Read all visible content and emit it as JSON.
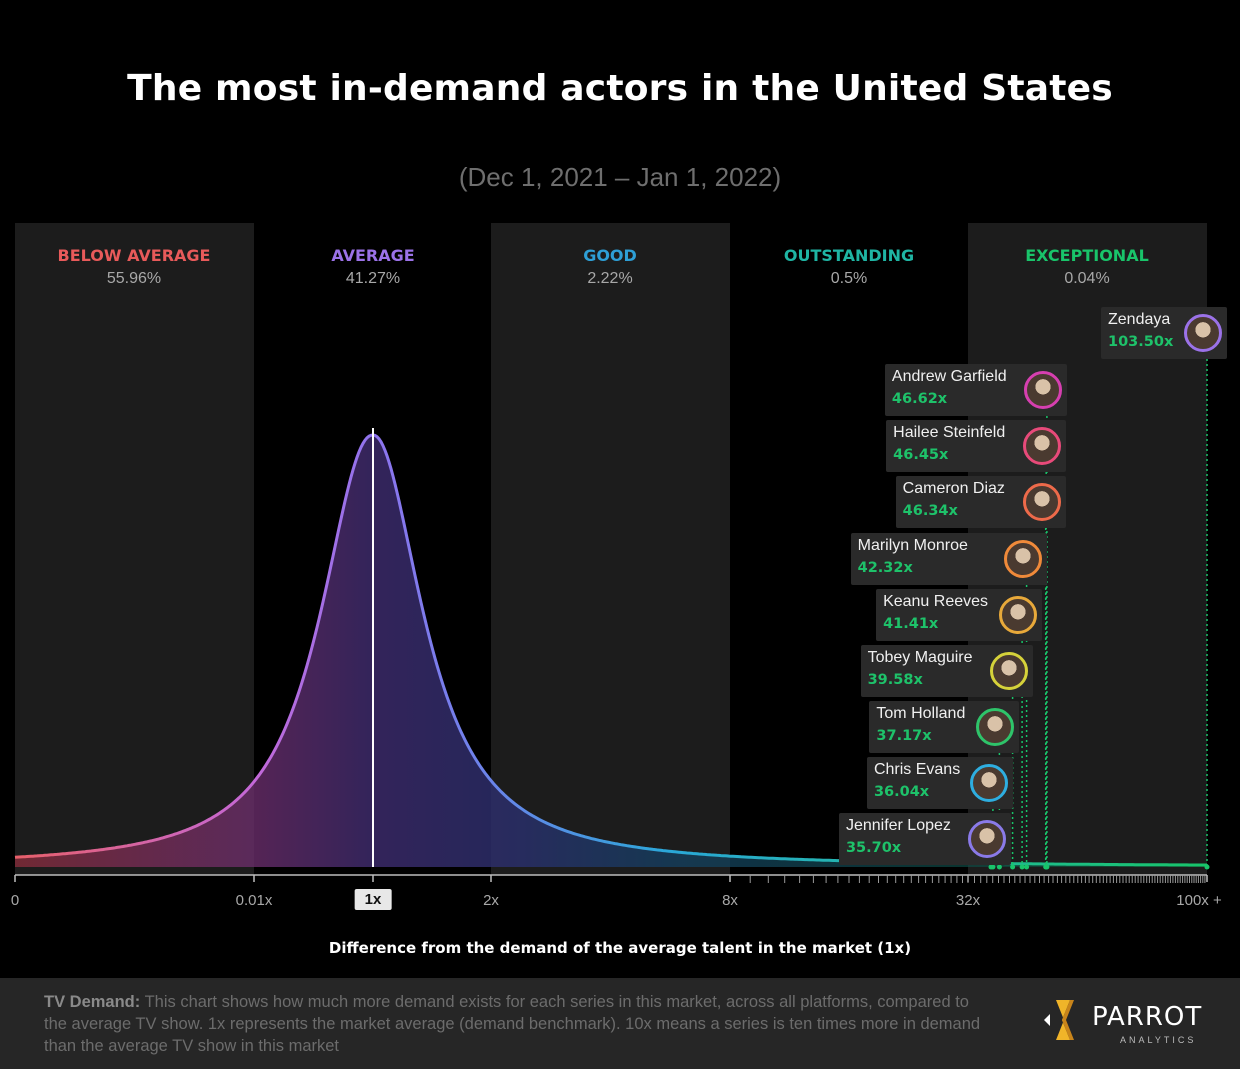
{
  "header": {
    "title": "The most in-demand actors in the United States",
    "subtitle": "(Dec 1, 2021 – Jan 1, 2022)"
  },
  "bands": [
    {
      "label": "BELOW AVERAGE",
      "percent": "55.96%",
      "color": "#e85a5a"
    },
    {
      "label": "AVERAGE",
      "percent": "41.27%",
      "color": "#9b72e8"
    },
    {
      "label": "GOOD",
      "percent": "2.22%",
      "color": "#2e9fd6"
    },
    {
      "label": "OUTSTANDING",
      "percent": "0.5%",
      "color": "#1fb5a4"
    },
    {
      "label": "EXCEPTIONAL",
      "percent": "0.04%",
      "color": "#19c46a"
    }
  ],
  "chart_data": {
    "type": "area",
    "title": "The most in-demand actors in the United States",
    "xlabel": "Difference from the demand of the average talent in the market (1x)",
    "x_ticks": [
      "0",
      "0.01x",
      "1x",
      "2x",
      "8x",
      "32x",
      "100x +"
    ],
    "x_scale": "piecewise log",
    "distribution_peak": "1x",
    "series": [
      {
        "name": "Zendaya",
        "value": 103.5,
        "label": "103.50x",
        "ring": "#9b72e8"
      },
      {
        "name": "Andrew Garfield",
        "value": 46.62,
        "label": "46.62x",
        "ring": "#d63fb0"
      },
      {
        "name": "Hailee Steinfeld",
        "value": 46.45,
        "label": "46.45x",
        "ring": "#e84a7a"
      },
      {
        "name": "Cameron Diaz",
        "value": 46.34,
        "label": "46.34x",
        "ring": "#ee6a4a"
      },
      {
        "name": "Marilyn Monroe",
        "value": 42.32,
        "label": "42.32x",
        "ring": "#f08a3a"
      },
      {
        "name": "Keanu Reeves",
        "value": 41.41,
        "label": "41.41x",
        "ring": "#e8a93a"
      },
      {
        "name": "Tobey Maguire",
        "value": 39.58,
        "label": "39.58x",
        "ring": "#d6d23a"
      },
      {
        "name": "Tom Holland",
        "value": 37.17,
        "label": "37.17x",
        "ring": "#2ec46a"
      },
      {
        "name": "Chris Evans",
        "value": 36.04,
        "label": "36.04x",
        "ring": "#2eaee0"
      },
      {
        "name": "Jennifer Lopez",
        "value": 35.7,
        "label": "35.70x",
        "ring": "#8a7ae8"
      }
    ]
  },
  "footer": {
    "lead": "TV Demand:",
    "text": "This chart shows how much more demand exists for each series in this market, across all platforms, compared to the average TV show. 1x represents the market average (demand benchmark). 10x means a series is ten times more in demand than the average TV show in this market",
    "logo_name": "PARROT",
    "logo_sub": "ANALYTICS"
  }
}
